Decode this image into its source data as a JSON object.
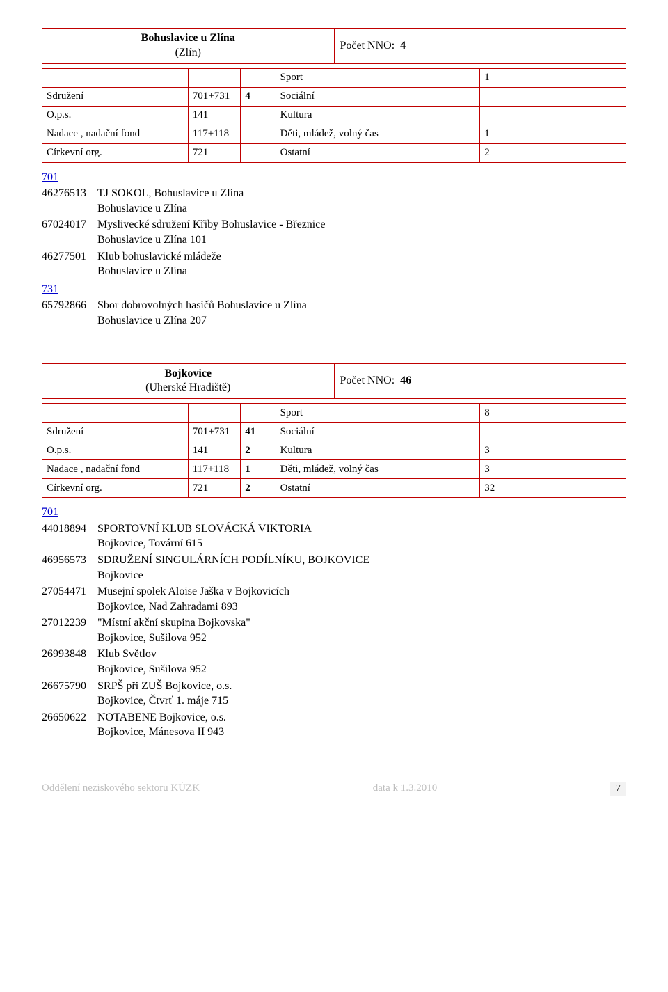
{
  "colors": {
    "border": "#c00000",
    "link": "#0000cc",
    "footer_grey": "#bfbfbf",
    "page_bg": "#f2f2f2"
  },
  "sections": [
    {
      "title": "Bohuslavice u Zlína",
      "subtitle": "(Zlín)",
      "count_label": "Počet NNO:",
      "count_value": "4",
      "grid": [
        {
          "label": "",
          "code": "",
          "n1": "",
          "cat": "Sport",
          "n2": "1"
        },
        {
          "label": "Sdružení",
          "code": "701+731",
          "n1": "4",
          "cat": "Sociální",
          "n2": ""
        },
        {
          "label": "O.p.s.",
          "code": "141",
          "n1": "",
          "cat": "Kultura",
          "n2": ""
        },
        {
          "label": "Nadace , nadační fond",
          "code": "117+118",
          "n1": "",
          "cat": "Děti, mládež, volný čas",
          "n2": "1"
        },
        {
          "label": "Církevní org.",
          "code": "721",
          "n1": "",
          "cat": "Ostatní",
          "n2": "2"
        }
      ],
      "groups": [
        {
          "code": "701",
          "entries": [
            {
              "id": "46276513",
              "line1": "TJ SOKOL, Bohuslavice u Zlína",
              "line2": "Bohuslavice u Zlína"
            },
            {
              "id": "67024017",
              "line1": "Myslivecké sdružení Křiby Bohuslavice - Březnice",
              "line2": "Bohuslavice u Zlína 101"
            },
            {
              "id": "46277501",
              "line1": "Klub bohuslavické mládeže",
              "line2": "Bohuslavice u Zlína"
            }
          ]
        },
        {
          "code": "731",
          "entries": [
            {
              "id": "65792866",
              "line1": "Sbor dobrovolných hasičů Bohuslavice u Zlína",
              "line2": "Bohuslavice u Zlína 207"
            }
          ]
        }
      ]
    },
    {
      "title": "Bojkovice",
      "subtitle": "(Uherské Hradiště)",
      "count_label": "Počet NNO:",
      "count_value": "46",
      "grid": [
        {
          "label": "",
          "code": "",
          "n1": "",
          "cat": "Sport",
          "n2": "8"
        },
        {
          "label": "Sdružení",
          "code": "701+731",
          "n1": "41",
          "cat": "Sociální",
          "n2": ""
        },
        {
          "label": "O.p.s.",
          "code": "141",
          "n1": "2",
          "cat": "Kultura",
          "n2": "3"
        },
        {
          "label": "Nadace , nadační fond",
          "code": "117+118",
          "n1": "1",
          "cat": "Děti, mládež, volný čas",
          "n2": "3"
        },
        {
          "label": "Církevní org.",
          "code": "721",
          "n1": "2",
          "cat": "Ostatní",
          "n2": "32"
        }
      ],
      "groups": [
        {
          "code": "701",
          "entries": [
            {
              "id": "44018894",
              "line1": "SPORTOVNÍ KLUB SLOVÁCKÁ VIKTORIA",
              "line2": "Bojkovice, Tovární 615"
            },
            {
              "id": "46956573",
              "line1": "SDRUŽENÍ SINGULÁRNÍCH PODÍLNÍKU, BOJKOVICE",
              "line2": "Bojkovice"
            },
            {
              "id": "27054471",
              "line1": "Musejní spolek Aloise Jaška v Bojkovicích",
              "line2": "Bojkovice, Nad Zahradami 893"
            },
            {
              "id": "27012239",
              "line1": "\"Místní akční skupina Bojkovska\"",
              "line2": "Bojkovice, Sušilova 952"
            },
            {
              "id": "26993848",
              "line1": "Klub Světlov",
              "line2": "Bojkovice, Sušilova 952"
            },
            {
              "id": "26675790",
              "line1": "SRPŠ při ZUŠ Bojkovice, o.s.",
              "line2": "Bojkovice, Čtvrť 1. máje 715"
            },
            {
              "id": "26650622",
              "line1": "NOTABENE Bojkovice, o.s.",
              "line2": "Bojkovice, Mánesova II 943"
            }
          ]
        }
      ]
    }
  ],
  "footer": {
    "left": "Oddělení neziskového sektoru KÚZK",
    "center": "data k 1.3.2010",
    "page": "7"
  }
}
